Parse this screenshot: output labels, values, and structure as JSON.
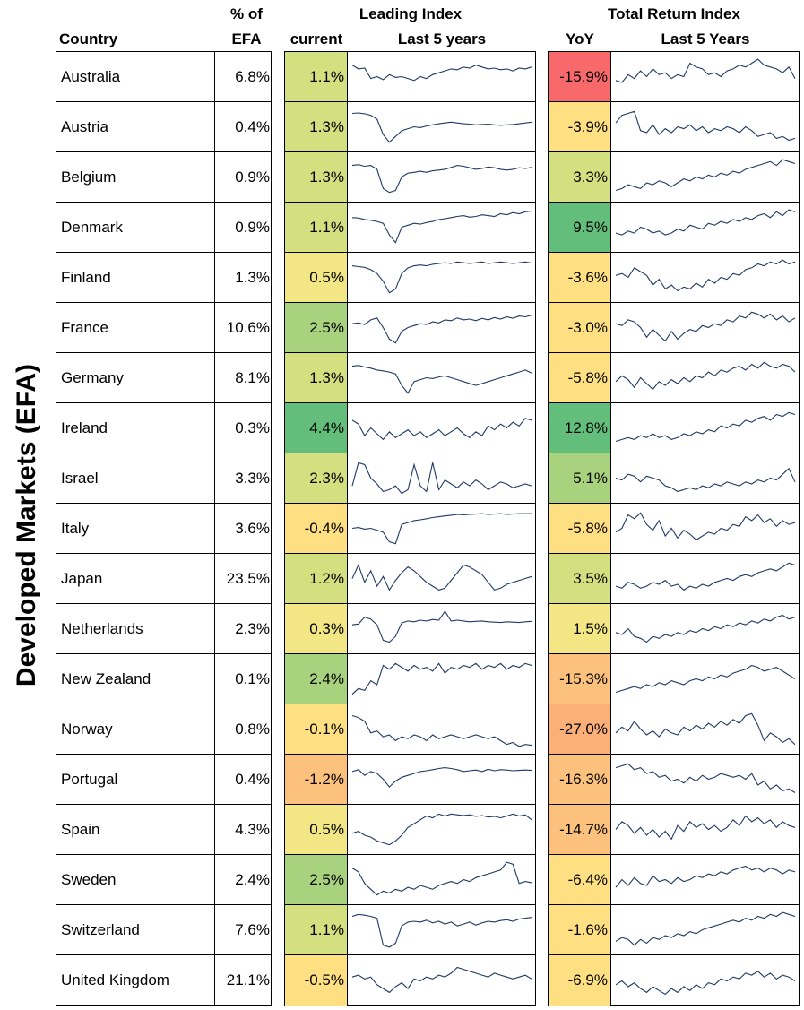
{
  "side_label": "Developed Markets (EFA)",
  "headers": {
    "country": "Country",
    "pct_line1": "% of",
    "pct_line2": "EFA",
    "leading_group": "Leading Index",
    "leading_current": "current",
    "leading_spark": "Last 5 years",
    "tr_group": "Total Return Index",
    "tr_yoy": "YoY",
    "tr_spark": "Last 5 Years"
  },
  "colors": {
    "strong_green": "#63be7b",
    "green": "#a9d27f",
    "yellow_green": "#d4e07f",
    "light_yellow": "#f2e784",
    "yellow": "#fee082",
    "orange": "#fcc27d",
    "light_orange": "#fbb079",
    "red": "#f8696b",
    "spark_line": "#1f3864"
  },
  "rows": [
    {
      "country": "Australia",
      "pct": "6.8%",
      "leading": "1.1%",
      "leading_color": "#d4e07f",
      "yoy": "-15.9%",
      "yoy_color": "#f8696b",
      "leading_spark": [
        80,
        70,
        72,
        45,
        50,
        42,
        55,
        48,
        50,
        45,
        40,
        50,
        45,
        55,
        60,
        65,
        70,
        68,
        75,
        72,
        80,
        75,
        70,
        72,
        68,
        70,
        65,
        72,
        70,
        75
      ],
      "tr_spark": [
        40,
        35,
        55,
        45,
        65,
        50,
        70,
        55,
        60,
        45,
        55,
        50,
        85,
        75,
        70,
        55,
        60,
        50,
        65,
        70,
        80,
        75,
        85,
        95,
        80,
        75,
        70,
        60,
        75,
        45
      ]
    },
    {
      "country": "Austria",
      "pct": "0.4%",
      "leading": "1.3%",
      "leading_color": "#d4e07f",
      "yoy": "-3.9%",
      "yoy_color": "#fee082",
      "leading_spark": [
        85,
        86,
        84,
        80,
        70,
        30,
        10,
        25,
        40,
        45,
        50,
        48,
        52,
        55,
        58,
        60,
        62,
        60,
        58,
        57,
        55,
        56,
        57,
        55,
        54,
        55,
        56,
        58,
        60,
        62
      ],
      "tr_spark": [
        60,
        80,
        85,
        90,
        40,
        35,
        55,
        30,
        45,
        35,
        50,
        45,
        55,
        40,
        50,
        35,
        45,
        40,
        50,
        45,
        35,
        50,
        40,
        25,
        30,
        35,
        20,
        25,
        15,
        20
      ]
    },
    {
      "country": "Belgium",
      "pct": "0.9%",
      "leading": "1.3%",
      "leading_color": "#d4e07f",
      "yoy": "3.3%",
      "yoy_color": "#d4e07f",
      "leading_spark": [
        80,
        82,
        78,
        80,
        70,
        20,
        10,
        15,
        50,
        60,
        62,
        65,
        62,
        66,
        68,
        70,
        75,
        80,
        78,
        74,
        70,
        72,
        76,
        74,
        70,
        68,
        70,
        74,
        72,
        75
      ],
      "tr_spark": [
        15,
        20,
        30,
        25,
        20,
        35,
        30,
        40,
        35,
        25,
        35,
        45,
        40,
        50,
        45,
        55,
        50,
        60,
        55,
        65,
        60,
        70,
        75,
        80,
        85,
        90,
        80,
        95,
        90,
        85
      ]
    },
    {
      "country": "Denmark",
      "pct": "0.9%",
      "leading": "1.1%",
      "leading_color": "#d4e07f",
      "yoy": "9.5%",
      "yoy_color": "#63be7b",
      "leading_spark": [
        75,
        74,
        70,
        68,
        65,
        60,
        30,
        10,
        50,
        55,
        60,
        58,
        62,
        65,
        70,
        72,
        75,
        78,
        80,
        76,
        78,
        82,
        80,
        78,
        85,
        82,
        88,
        85,
        90,
        92
      ],
      "tr_spark": [
        35,
        30,
        40,
        35,
        50,
        45,
        35,
        40,
        30,
        35,
        45,
        40,
        55,
        50,
        45,
        60,
        55,
        65,
        60,
        70,
        65,
        75,
        70,
        80,
        85,
        75,
        90,
        80,
        95,
        90
      ]
    },
    {
      "country": "Finland",
      "pct": "1.3%",
      "leading": "0.5%",
      "leading_color": "#f2e784",
      "yoy": "-3.6%",
      "yoy_color": "#fee082",
      "leading_spark": [
        80,
        78,
        76,
        70,
        60,
        40,
        10,
        20,
        60,
        75,
        80,
        82,
        80,
        84,
        86,
        88,
        86,
        90,
        88,
        86,
        88,
        90,
        86,
        88,
        90,
        88,
        86,
        88,
        90,
        87
      ],
      "tr_spark": [
        55,
        60,
        50,
        75,
        65,
        55,
        30,
        45,
        20,
        30,
        15,
        25,
        20,
        35,
        25,
        45,
        35,
        50,
        45,
        60,
        55,
        70,
        75,
        85,
        80,
        90,
        85,
        95,
        85,
        90
      ]
    },
    {
      "country": "France",
      "pct": "10.6%",
      "leading": "2.5%",
      "leading_color": "#a9d27f",
      "yoy": "-3.0%",
      "yoy_color": "#fee082",
      "leading_spark": [
        60,
        62,
        58,
        70,
        75,
        50,
        20,
        10,
        40,
        50,
        55,
        60,
        58,
        65,
        62,
        70,
        68,
        75,
        70,
        72,
        68,
        74,
        70,
        76,
        72,
        78,
        74,
        80,
        78,
        82
      ],
      "tr_spark": [
        60,
        55,
        70,
        65,
        50,
        25,
        45,
        30,
        15,
        40,
        20,
        35,
        45,
        40,
        55,
        50,
        60,
        55,
        70,
        65,
        80,
        75,
        90,
        85,
        75,
        85,
        70,
        80,
        65,
        75
      ]
    },
    {
      "country": "Germany",
      "pct": "8.1%",
      "leading": "1.3%",
      "leading_color": "#d4e07f",
      "yoy": "-5.8%",
      "yoy_color": "#fee082",
      "leading_spark": [
        80,
        82,
        78,
        75,
        70,
        68,
        65,
        60,
        30,
        10,
        40,
        45,
        50,
        48,
        52,
        55,
        50,
        45,
        40,
        35,
        30,
        35,
        40,
        45,
        50,
        55,
        60,
        65,
        70,
        62
      ],
      "tr_spark": [
        40,
        55,
        45,
        25,
        50,
        35,
        20,
        40,
        30,
        45,
        35,
        50,
        40,
        55,
        50,
        65,
        55,
        70,
        65,
        75,
        80,
        70,
        85,
        75,
        90,
        80,
        75,
        85,
        80,
        65
      ]
    },
    {
      "country": "Ireland",
      "pct": "0.3%",
      "leading": "4.4%",
      "leading_color": "#63be7b",
      "yoy": "12.8%",
      "yoy_color": "#63be7b",
      "leading_spark": [
        70,
        60,
        30,
        50,
        35,
        20,
        40,
        25,
        35,
        45,
        30,
        40,
        25,
        35,
        45,
        30,
        40,
        50,
        35,
        25,
        40,
        30,
        55,
        45,
        60,
        50,
        65,
        55,
        75,
        70
      ],
      "tr_spark": [
        15,
        20,
        25,
        20,
        30,
        25,
        35,
        25,
        30,
        20,
        25,
        35,
        30,
        40,
        35,
        45,
        40,
        55,
        50,
        60,
        55,
        70,
        65,
        75,
        80,
        70,
        85,
        80,
        90,
        85
      ]
    },
    {
      "country": "Israel",
      "pct": "3.3%",
      "leading": "2.3%",
      "leading_color": "#d4e07f",
      "yoy": "5.1%",
      "yoy_color": "#a9d27f",
      "leading_spark": [
        30,
        90,
        85,
        50,
        35,
        15,
        20,
        30,
        10,
        20,
        85,
        30,
        15,
        90,
        20,
        45,
        35,
        25,
        40,
        30,
        45,
        35,
        20,
        30,
        40,
        35,
        25,
        30,
        35,
        30
      ],
      "tr_spark": [
        50,
        45,
        60,
        55,
        40,
        55,
        50,
        45,
        30,
        25,
        15,
        20,
        25,
        20,
        30,
        25,
        35,
        30,
        40,
        35,
        30,
        40,
        35,
        45,
        40,
        50,
        45,
        60,
        75,
        40
      ]
    },
    {
      "country": "Italy",
      "pct": "3.6%",
      "leading": "-0.4%",
      "leading_color": "#fee082",
      "yoy": "-5.8%",
      "yoy_color": "#fee082",
      "leading_spark": [
        50,
        52,
        48,
        50,
        45,
        40,
        15,
        10,
        60,
        65,
        70,
        72,
        75,
        78,
        80,
        82,
        84,
        86,
        85,
        86,
        87,
        88,
        86,
        87,
        88,
        86,
        87,
        88,
        88,
        88
      ],
      "tr_spark": [
        40,
        50,
        85,
        75,
        90,
        60,
        45,
        70,
        30,
        50,
        25,
        45,
        35,
        20,
        30,
        40,
        35,
        50,
        45,
        60,
        55,
        80,
        70,
        85,
        65,
        75,
        55,
        70,
        60,
        65
      ]
    },
    {
      "country": "Japan",
      "pct": "23.5%",
      "leading": "1.2%",
      "leading_color": "#d4e07f",
      "yoy": "3.5%",
      "yoy_color": "#d4e07f",
      "leading_spark": [
        50,
        85,
        40,
        70,
        30,
        55,
        20,
        45,
        65,
        80,
        70,
        55,
        40,
        30,
        20,
        25,
        45,
        65,
        85,
        80,
        70,
        60,
        40,
        20,
        25,
        35,
        40,
        45,
        50,
        55
      ],
      "tr_spark": [
        30,
        25,
        40,
        35,
        25,
        30,
        40,
        35,
        45,
        30,
        35,
        20,
        30,
        25,
        35,
        30,
        40,
        45,
        50,
        45,
        55,
        60,
        55,
        65,
        70,
        75,
        70,
        80,
        90,
        85
      ]
    },
    {
      "country": "Netherlands",
      "pct": "2.3%",
      "leading": "0.3%",
      "leading_color": "#f2e784",
      "yoy": "1.5%",
      "yoy_color": "#f2e784",
      "leading_spark": [
        60,
        62,
        80,
        75,
        60,
        20,
        15,
        30,
        65,
        70,
        68,
        72,
        70,
        74,
        72,
        95,
        70,
        72,
        70,
        68,
        69,
        70,
        68,
        67,
        66,
        68,
        67,
        66,
        68,
        69
      ],
      "tr_spark": [
        40,
        35,
        50,
        30,
        25,
        15,
        30,
        25,
        35,
        30,
        40,
        35,
        45,
        40,
        50,
        45,
        55,
        50,
        60,
        55,
        65,
        60,
        70,
        65,
        75,
        70,
        80,
        85,
        75,
        80
      ]
    },
    {
      "country": "New Zealand",
      "pct": "0.1%",
      "leading": "2.4%",
      "leading_color": "#a9d27f",
      "yoy": "-15.3%",
      "yoy_color": "#fcc27d",
      "leading_spark": [
        10,
        25,
        20,
        45,
        35,
        85,
        75,
        90,
        80,
        70,
        85,
        75,
        80,
        70,
        90,
        65,
        80,
        75,
        85,
        80,
        90,
        75,
        85,
        80,
        90,
        75,
        85,
        80,
        90,
        85
      ],
      "tr_spark": [
        15,
        20,
        25,
        30,
        25,
        35,
        30,
        40,
        35,
        45,
        40,
        35,
        45,
        50,
        45,
        55,
        50,
        60,
        55,
        65,
        70,
        75,
        85,
        80,
        70,
        75,
        80,
        70,
        60,
        50
      ]
    },
    {
      "country": "Norway",
      "pct": "0.8%",
      "leading": "-0.1%",
      "leading_color": "#fee082",
      "yoy": "-27.0%",
      "yoy_color": "#fbb079",
      "leading_spark": [
        85,
        80,
        70,
        40,
        45,
        30,
        35,
        20,
        30,
        25,
        35,
        30,
        20,
        35,
        25,
        30,
        35,
        30,
        25,
        30,
        35,
        30,
        25,
        30,
        20,
        10,
        15,
        5,
        10,
        8
      ],
      "tr_spark": [
        40,
        55,
        45,
        70,
        50,
        35,
        45,
        30,
        50,
        40,
        35,
        55,
        45,
        60,
        50,
        65,
        55,
        70,
        60,
        75,
        65,
        85,
        90,
        60,
        20,
        40,
        30,
        15,
        25,
        10
      ]
    },
    {
      "country": "Portugal",
      "pct": "0.4%",
      "leading": "-1.2%",
      "leading_color": "#fcc27d",
      "yoy": "-16.3%",
      "yoy_color": "#fcc27d",
      "leading_spark": [
        70,
        75,
        60,
        70,
        65,
        50,
        30,
        45,
        55,
        60,
        65,
        70,
        72,
        75,
        78,
        80,
        78,
        75,
        70,
        72,
        74,
        70,
        76,
        72,
        75,
        74,
        72,
        73,
        74,
        73
      ],
      "tr_spark": [
        80,
        85,
        90,
        75,
        80,
        65,
        70,
        55,
        60,
        45,
        50,
        40,
        55,
        45,
        60,
        50,
        55,
        65,
        60,
        55,
        60,
        50,
        65,
        35,
        45,
        25,
        35,
        20,
        25,
        15
      ]
    },
    {
      "country": "Spain",
      "pct": "4.3%",
      "leading": "0.5%",
      "leading_color": "#f2e784",
      "yoy": "-14.7%",
      "yoy_color": "#fcc27d",
      "leading_spark": [
        40,
        45,
        35,
        30,
        20,
        15,
        10,
        20,
        35,
        55,
        65,
        75,
        85,
        80,
        90,
        85,
        90,
        88,
        86,
        88,
        84,
        86,
        82,
        84,
        80,
        85,
        90,
        85,
        88,
        75
      ],
      "tr_spark": [
        50,
        70,
        60,
        40,
        55,
        35,
        50,
        30,
        45,
        25,
        60,
        45,
        70,
        55,
        65,
        50,
        60,
        45,
        55,
        75,
        60,
        85,
        70,
        80,
        65,
        75,
        55,
        70,
        60,
        55
      ]
    },
    {
      "country": "Sweden",
      "pct": "2.4%",
      "leading": "2.5%",
      "leading_color": "#a9d27f",
      "yoy": "-6.4%",
      "yoy_color": "#fee082",
      "leading_spark": [
        80,
        70,
        40,
        25,
        10,
        20,
        15,
        25,
        20,
        30,
        25,
        35,
        30,
        25,
        35,
        40,
        45,
        40,
        50,
        45,
        55,
        60,
        65,
        70,
        75,
        95,
        90,
        40,
        45,
        42
      ],
      "tr_spark": [
        30,
        50,
        35,
        55,
        40,
        35,
        60,
        45,
        50,
        40,
        55,
        45,
        50,
        60,
        55,
        65,
        60,
        70,
        65,
        75,
        80,
        85,
        75,
        80,
        70,
        80,
        75,
        65,
        75,
        70
      ]
    },
    {
      "country": "Switzerland",
      "pct": "7.6%",
      "leading": "1.1%",
      "leading_color": "#d4e07f",
      "yoy": "-1.6%",
      "yoy_color": "#fee082",
      "leading_spark": [
        85,
        90,
        88,
        85,
        80,
        10,
        5,
        15,
        60,
        70,
        72,
        70,
        75,
        68,
        72,
        65,
        70,
        60,
        65,
        70,
        62,
        68,
        72,
        70,
        74,
        76,
        72,
        78,
        80,
        82
      ],
      "tr_spark": [
        20,
        30,
        25,
        10,
        25,
        15,
        30,
        25,
        35,
        30,
        40,
        35,
        45,
        40,
        50,
        55,
        60,
        65,
        70,
        75,
        70,
        80,
        75,
        85,
        80,
        90,
        85,
        95,
        90,
        85
      ]
    },
    {
      "country": "United Kingdom",
      "pct": "21.1%",
      "leading": "-0.5%",
      "leading_color": "#fee082",
      "yoy": "-6.9%",
      "yoy_color": "#fee082",
      "leading_spark": [
        60,
        65,
        55,
        60,
        40,
        30,
        20,
        35,
        45,
        30,
        55,
        50,
        60,
        55,
        65,
        60,
        70,
        85,
        80,
        75,
        70,
        65,
        60,
        70,
        65,
        60,
        55,
        60,
        65,
        55
      ],
      "tr_spark": [
        40,
        50,
        35,
        45,
        30,
        20,
        35,
        25,
        15,
        30,
        20,
        35,
        25,
        40,
        30,
        45,
        40,
        55,
        50,
        60,
        55,
        70,
        65,
        75,
        60,
        70,
        55,
        65,
        60,
        50
      ]
    }
  ]
}
